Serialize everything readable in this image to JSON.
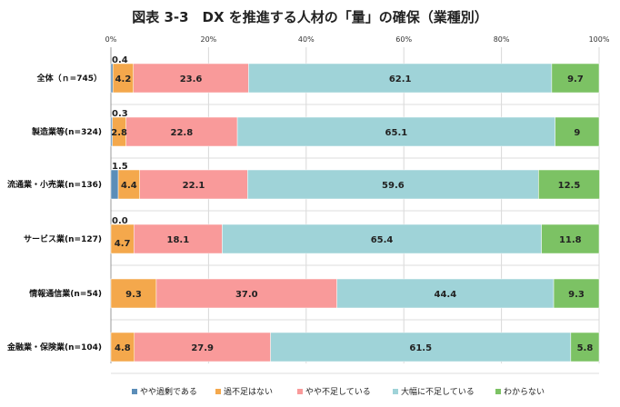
{
  "chart_data": {
    "type": "bar",
    "orientation": "horizontal",
    "stacked": true,
    "title": "図表 3-3　DX を推進する人材の「量」の確保（業種別）",
    "xlim": [
      0,
      100
    ],
    "x_ticks": [
      "0%",
      "20%",
      "40%",
      "60%",
      "80%",
      "100%"
    ],
    "categories": [
      "全体（ｎ=745）",
      "製造業等(n=324)",
      "流通業・小売業(n=136)",
      "サービス業(n=127)",
      "情報通信業(n=54)",
      "金融業・保険業(n=104)"
    ],
    "series": [
      {
        "name": "やや過剰である",
        "color": "#5b8db8",
        "values": [
          0.4,
          0.3,
          1.5,
          0.0,
          0.0,
          0.0
        ],
        "labels": [
          "0.4",
          "0.3",
          "1.5",
          "0.0",
          "",
          ""
        ]
      },
      {
        "name": "過不足はない",
        "color": "#f4a84c",
        "values": [
          4.2,
          2.8,
          4.4,
          4.7,
          9.3,
          4.8
        ],
        "labels": [
          "4.2",
          "2.8",
          "4.4",
          "4.7",
          "9.3",
          "4.8"
        ]
      },
      {
        "name": "やや不足している",
        "color": "#f99a9a",
        "values": [
          23.6,
          22.8,
          22.1,
          18.1,
          37.0,
          27.9
        ],
        "labels": [
          "23.6",
          "22.8",
          "22.1",
          "18.1",
          "37.0",
          "27.9"
        ]
      },
      {
        "name": "大幅に不足している",
        "color": "#9fd3d8",
        "values": [
          62.1,
          65.1,
          59.6,
          65.4,
          44.4,
          61.5
        ],
        "labels": [
          "62.1",
          "65.1",
          "59.6",
          "65.4",
          "44.4",
          "61.5"
        ]
      },
      {
        "name": "わからない",
        "color": "#7cc264",
        "values": [
          9.7,
          9,
          12.5,
          11.8,
          9.3,
          5.8
        ],
        "labels": [
          "9.7",
          "9",
          "12.5",
          "11.8",
          "9.3",
          "5.8"
        ]
      }
    ],
    "legend_position": "bottom",
    "grid": true
  }
}
